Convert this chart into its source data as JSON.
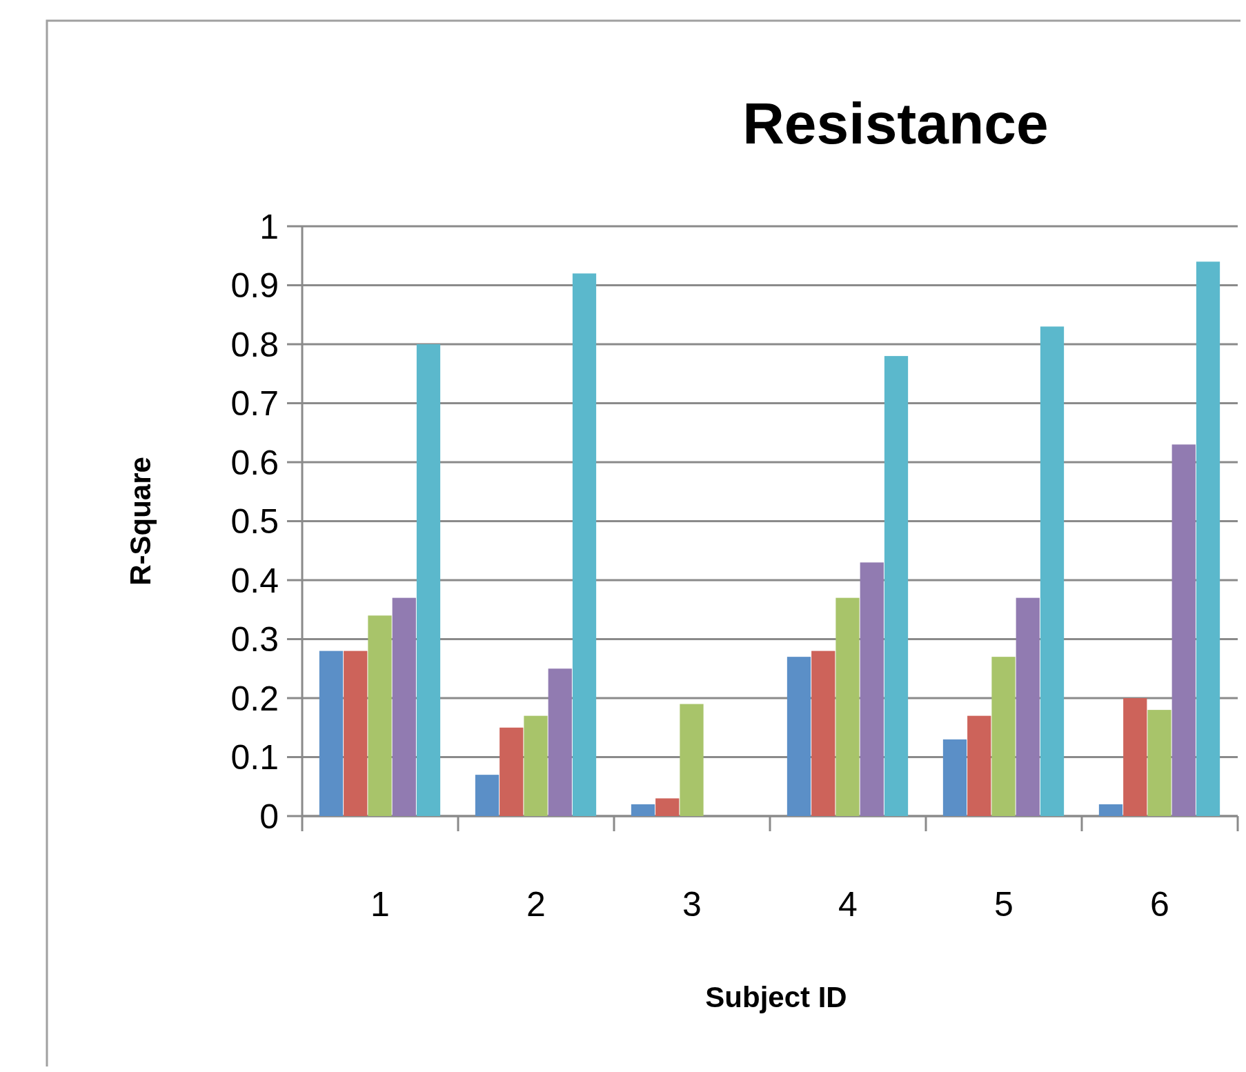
{
  "chart_data": {
    "type": "bar",
    "title": "Resistance",
    "xlabel": "Subject ID",
    "ylabel": "R-Square",
    "categories": [
      "1",
      "2",
      "3",
      "4",
      "5",
      "6"
    ],
    "series": [
      {
        "color": "#5b8fc7",
        "values": [
          0.28,
          0.07,
          0.02,
          0.27,
          0.13,
          0.02
        ]
      },
      {
        "color": "#cd635a",
        "values": [
          0.28,
          0.15,
          0.03,
          0.28,
          0.17,
          0.2
        ]
      },
      {
        "color": "#a8c46a",
        "values": [
          0.34,
          0.17,
          0.19,
          0.37,
          0.27,
          0.18
        ]
      },
      {
        "color": "#917bb1",
        "values": [
          0.37,
          0.25,
          null,
          0.43,
          0.37,
          0.63
        ]
      },
      {
        "color": "#5bb8cc",
        "values": [
          0.8,
          0.92,
          null,
          0.78,
          0.83,
          0.94
        ]
      }
    ],
    "ylim": [
      0,
      1
    ],
    "yticks": [
      0,
      0.1,
      0.2,
      0.3,
      0.4,
      0.5,
      0.6,
      0.7,
      0.8,
      0.9,
      1
    ],
    "grid": "y"
  }
}
